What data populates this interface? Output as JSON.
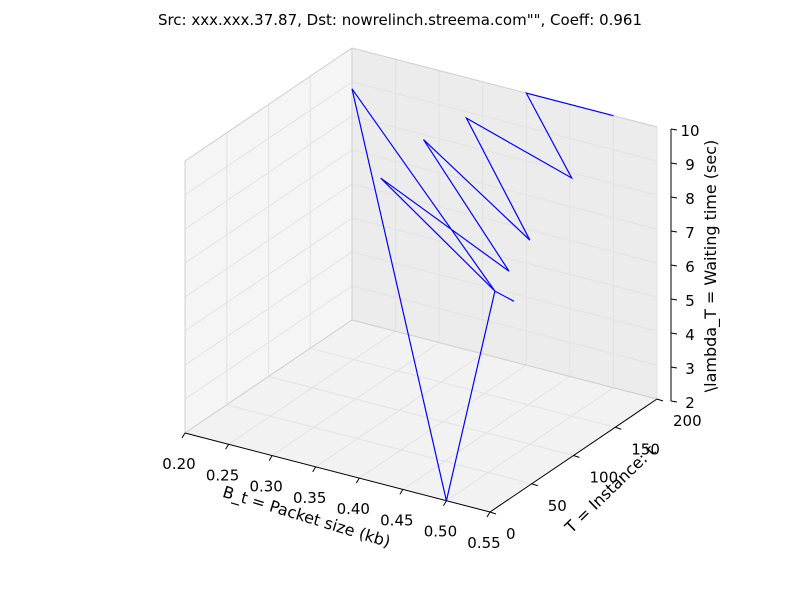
{
  "chart_data": {
    "type": "line",
    "projection": "3d",
    "title": "Src: xxx.xxx.37.87, Dst: nowrelinch.streema.com\"\", Coeff: 0.961",
    "xlabel": "B_t = Packet size (kb)",
    "ylabel": "T = Instance: t",
    "zlabel": "\\lambda_T = Waiting time (sec)",
    "xlim": [
      0.2,
      0.55
    ],
    "ylim": [
      0,
      200
    ],
    "zlim": [
      2,
      10
    ],
    "x_ticks": [
      "0.20",
      "0.25",
      "0.30",
      "0.35",
      "0.40",
      "0.45",
      "0.50",
      "0.55"
    ],
    "y_ticks": [
      "0",
      "50",
      "100",
      "150",
      "200"
    ],
    "z_ticks": [
      "2",
      "3",
      "4",
      "5",
      "6",
      "7",
      "8",
      "9",
      "10"
    ],
    "grid": true,
    "series_color": "#0000ff",
    "series": [
      {
        "x": [
          0.52,
          0.5,
          0.5,
          0.2,
          0.5,
          0.3,
          0.5,
          0.33,
          0.5,
          0.36,
          0.5,
          0.4,
          0.5,
          0.5,
          0.5
        ],
        "y": [
          60,
          58,
          0,
          200,
          58,
          130,
          75,
          150,
          100,
          170,
          150,
          200,
          200,
          200,
          200
        ],
        "z": [
          7.0,
          7.2,
          2.0,
          8.8,
          7.2,
          8.0,
          7.5,
          9.0,
          8.0,
          9.5,
          9.0,
          10.0,
          10.0,
          10.0,
          10.0
        ]
      }
    ]
  }
}
